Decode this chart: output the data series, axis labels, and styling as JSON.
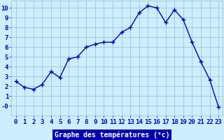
{
  "x": [
    0,
    1,
    2,
    3,
    4,
    5,
    6,
    7,
    8,
    9,
    10,
    11,
    12,
    13,
    14,
    15,
    16,
    17,
    18,
    19,
    20,
    21,
    22,
    23
  ],
  "y": [
    2.5,
    1.9,
    1.7,
    2.2,
    3.5,
    2.9,
    4.8,
    5.0,
    6.0,
    6.3,
    6.5,
    6.5,
    7.5,
    8.0,
    9.5,
    10.2,
    10.0,
    8.5,
    9.8,
    8.8,
    6.5,
    4.5,
    2.7,
    -0.1
  ],
  "line_color": "#0000bb",
  "marker": "+",
  "marker_color": "#0000bb",
  "bg_color": "#cceeff",
  "grid_color": "#99bbcc",
  "xlabel": "Graphe des températures (°c)",
  "xlabel_bg": "#0000aa",
  "xlabel_color": "#ffffff",
  "xlim": [
    -0.5,
    23.5
  ],
  "ylim": [
    -1.0,
    10.7
  ],
  "ytick_vals": [
    10,
    9,
    8,
    7,
    6,
    5,
    4,
    3,
    2,
    1,
    "-0"
  ],
  "ytick_positions": [
    10,
    9,
    8,
    7,
    6,
    5,
    4,
    3,
    2,
    1,
    0
  ],
  "xticks": [
    0,
    1,
    2,
    3,
    4,
    5,
    6,
    7,
    8,
    9,
    10,
    11,
    12,
    13,
    14,
    15,
    16,
    17,
    18,
    19,
    20,
    21,
    22,
    23
  ],
  "font_size": 6.5,
  "line_width": 1.0,
  "marker_size": 5
}
